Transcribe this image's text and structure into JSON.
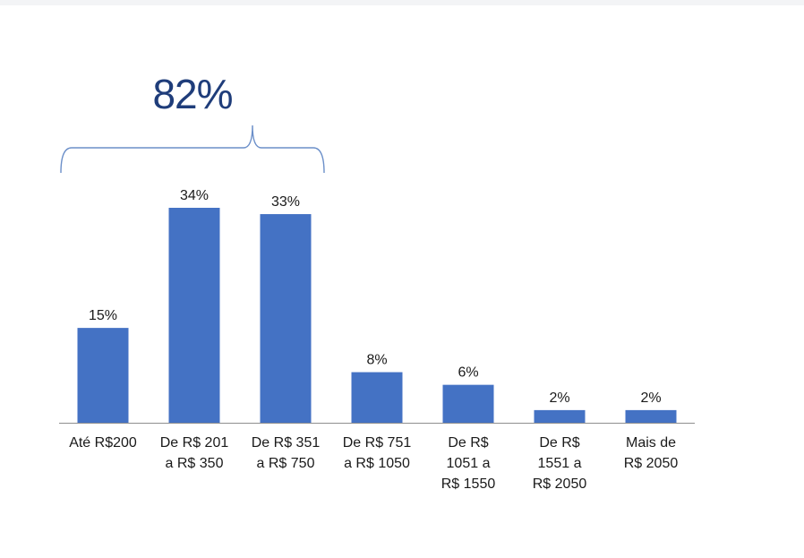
{
  "callout": {
    "value": "82%"
  },
  "chart_data": {
    "type": "bar",
    "categories": [
      [
        "Até R$200"
      ],
      [
        "De R$ 201",
        "a R$ 350"
      ],
      [
        "De R$ 351",
        "a R$ 750"
      ],
      [
        "De R$ 751",
        "a R$ 1050"
      ],
      [
        "De R$",
        "1051 a",
        "R$ 1550"
      ],
      [
        "De R$",
        "1551 a",
        "R$ 2050"
      ],
      [
        "Mais de",
        "R$ 2050"
      ]
    ],
    "values": [
      15,
      34,
      33,
      8,
      6,
      2,
      2
    ],
    "data_labels": [
      "15%",
      "34%",
      "33%",
      "8%",
      "6%",
      "2%",
      "2%"
    ],
    "title": "",
    "xlabel": "",
    "ylabel": "",
    "ylim": [
      0,
      34
    ],
    "grid": false,
    "bar_color": "#4472c4",
    "bracket_color": "#6b8fc9",
    "callout_color": "#1f3d7a",
    "bracket_spans_categories": [
      0,
      2
    ]
  }
}
